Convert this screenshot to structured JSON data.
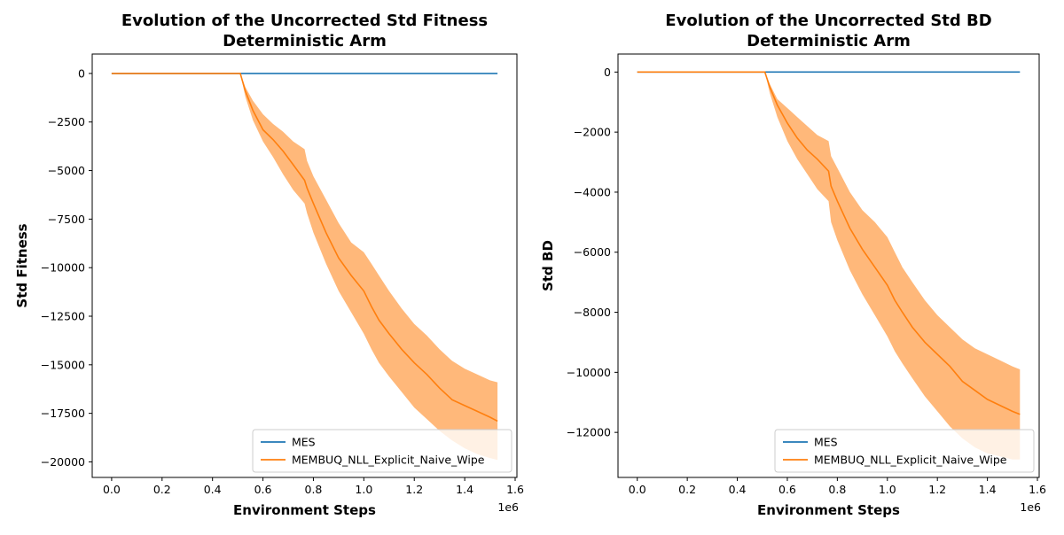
{
  "chart_data": [
    {
      "type": "line",
      "title": [
        "Evolution of the Uncorrected Std Fitness",
        "Deterministic Arm"
      ],
      "xlabel": "Environment Steps",
      "ylabel": "Std Fitness",
      "x_scale_label": "1e6",
      "xlim": [
        -0.077,
        1.607
      ],
      "ylim": [
        -20800,
        1000
      ],
      "xticks": [
        0.0,
        0.2,
        0.4,
        0.6,
        0.8,
        1.0,
        1.2,
        1.4,
        1.6
      ],
      "xtick_labels": [
        "0.0",
        "0.2",
        "0.4",
        "0.6",
        "0.8",
        "1.0",
        "1.2",
        "1.4",
        "1.6"
      ],
      "yticks": [
        0,
        -2500,
        -5000,
        -7500,
        -10000,
        -12500,
        -15000,
        -17500,
        -20000
      ],
      "ytick_labels": [
        "0",
        "−2500",
        "−5000",
        "−7500",
        "−10000",
        "−12500",
        "−15000",
        "−17500",
        "−20000"
      ],
      "grid": false,
      "legend_position": "lower-right",
      "series": [
        {
          "name": "MES",
          "color": "#1f77b4",
          "x": [
            0.0,
            1.53
          ],
          "y": [
            0,
            0
          ]
        },
        {
          "name": "MEMBUQ_NLL_Explicit_Naive_Wipe",
          "color": "#ff7f0e",
          "band_color": "#ffb87a",
          "x": [
            0.0,
            0.51,
            0.53,
            0.56,
            0.6,
            0.64,
            0.68,
            0.72,
            0.765,
            0.775,
            0.8,
            0.85,
            0.9,
            0.95,
            1.0,
            1.03,
            1.06,
            1.1,
            1.15,
            1.2,
            1.25,
            1.3,
            1.35,
            1.4,
            1.45,
            1.5,
            1.53
          ],
          "y": [
            0,
            0,
            -900,
            -1900,
            -2900,
            -3400,
            -4000,
            -4700,
            -5500,
            -5900,
            -6700,
            -8200,
            -9500,
            -10400,
            -11200,
            -12000,
            -12700,
            -13400,
            -14200,
            -14900,
            -15500,
            -16200,
            -16800,
            -17100,
            -17400,
            -17700,
            -17900
          ],
          "y_lower": [
            0,
            0,
            -1200,
            -2400,
            -3500,
            -4300,
            -5200,
            -6000,
            -6700,
            -7200,
            -8200,
            -9800,
            -11200,
            -12300,
            -13400,
            -14200,
            -14900,
            -15600,
            -16400,
            -17200,
            -17800,
            -18400,
            -18900,
            -19300,
            -19600,
            -19800,
            -19900
          ],
          "y_upper": [
            0,
            0,
            -700,
            -1400,
            -2100,
            -2600,
            -3000,
            -3500,
            -3900,
            -4500,
            -5300,
            -6500,
            -7700,
            -8700,
            -9200,
            -9800,
            -10400,
            -11200,
            -12100,
            -12900,
            -13500,
            -14200,
            -14800,
            -15200,
            -15500,
            -15800,
            -15900
          ]
        }
      ]
    },
    {
      "type": "line",
      "title": [
        "Evolution of the Uncorrected Std BD",
        "Deterministic Arm"
      ],
      "xlabel": "Environment Steps",
      "ylabel": "Std BD",
      "x_scale_label": "1e6",
      "xlim": [
        -0.077,
        1.607
      ],
      "ylim": [
        -13500,
        600
      ],
      "xticks": [
        0.0,
        0.2,
        0.4,
        0.6,
        0.8,
        1.0,
        1.2,
        1.4,
        1.6
      ],
      "xtick_labels": [
        "0.0",
        "0.2",
        "0.4",
        "0.6",
        "0.8",
        "1.0",
        "1.2",
        "1.4",
        "1.6"
      ],
      "yticks": [
        0,
        -2000,
        -4000,
        -6000,
        -8000,
        -10000,
        -12000
      ],
      "ytick_labels": [
        "0",
        "−2000",
        "−4000",
        "−6000",
        "−8000",
        "−10000",
        "−12000"
      ],
      "grid": false,
      "legend_position": "lower-right",
      "series": [
        {
          "name": "MES",
          "color": "#1f77b4",
          "x": [
            0.0,
            1.53
          ],
          "y": [
            0,
            0
          ]
        },
        {
          "name": "MEMBUQ_NLL_Explicit_Naive_Wipe",
          "color": "#ff7f0e",
          "band_color": "#ffb87a",
          "x": [
            0.0,
            0.51,
            0.53,
            0.56,
            0.6,
            0.64,
            0.68,
            0.72,
            0.765,
            0.775,
            0.8,
            0.85,
            0.9,
            0.95,
            1.0,
            1.03,
            1.06,
            1.1,
            1.15,
            1.2,
            1.25,
            1.3,
            1.35,
            1.4,
            1.45,
            1.5,
            1.53
          ],
          "y": [
            0,
            0,
            -500,
            -1100,
            -1700,
            -2200,
            -2600,
            -2900,
            -3300,
            -3800,
            -4300,
            -5200,
            -5900,
            -6500,
            -7100,
            -7600,
            -8000,
            -8500,
            -9000,
            -9400,
            -9800,
            -10300,
            -10600,
            -10900,
            -11100,
            -11300,
            -11400
          ],
          "y_lower": [
            0,
            0,
            -700,
            -1500,
            -2300,
            -2900,
            -3400,
            -3900,
            -4300,
            -5000,
            -5600,
            -6600,
            -7400,
            -8100,
            -8800,
            -9300,
            -9700,
            -10200,
            -10800,
            -11300,
            -11800,
            -12200,
            -12500,
            -12700,
            -12800,
            -12900,
            -12900
          ],
          "y_upper": [
            0,
            0,
            -400,
            -900,
            -1200,
            -1500,
            -1800,
            -2100,
            -2300,
            -2800,
            -3200,
            -4000,
            -4600,
            -5000,
            -5500,
            -6000,
            -6500,
            -7000,
            -7600,
            -8100,
            -8500,
            -8900,
            -9200,
            -9400,
            -9600,
            -9800,
            -9900
          ]
        }
      ]
    }
  ]
}
